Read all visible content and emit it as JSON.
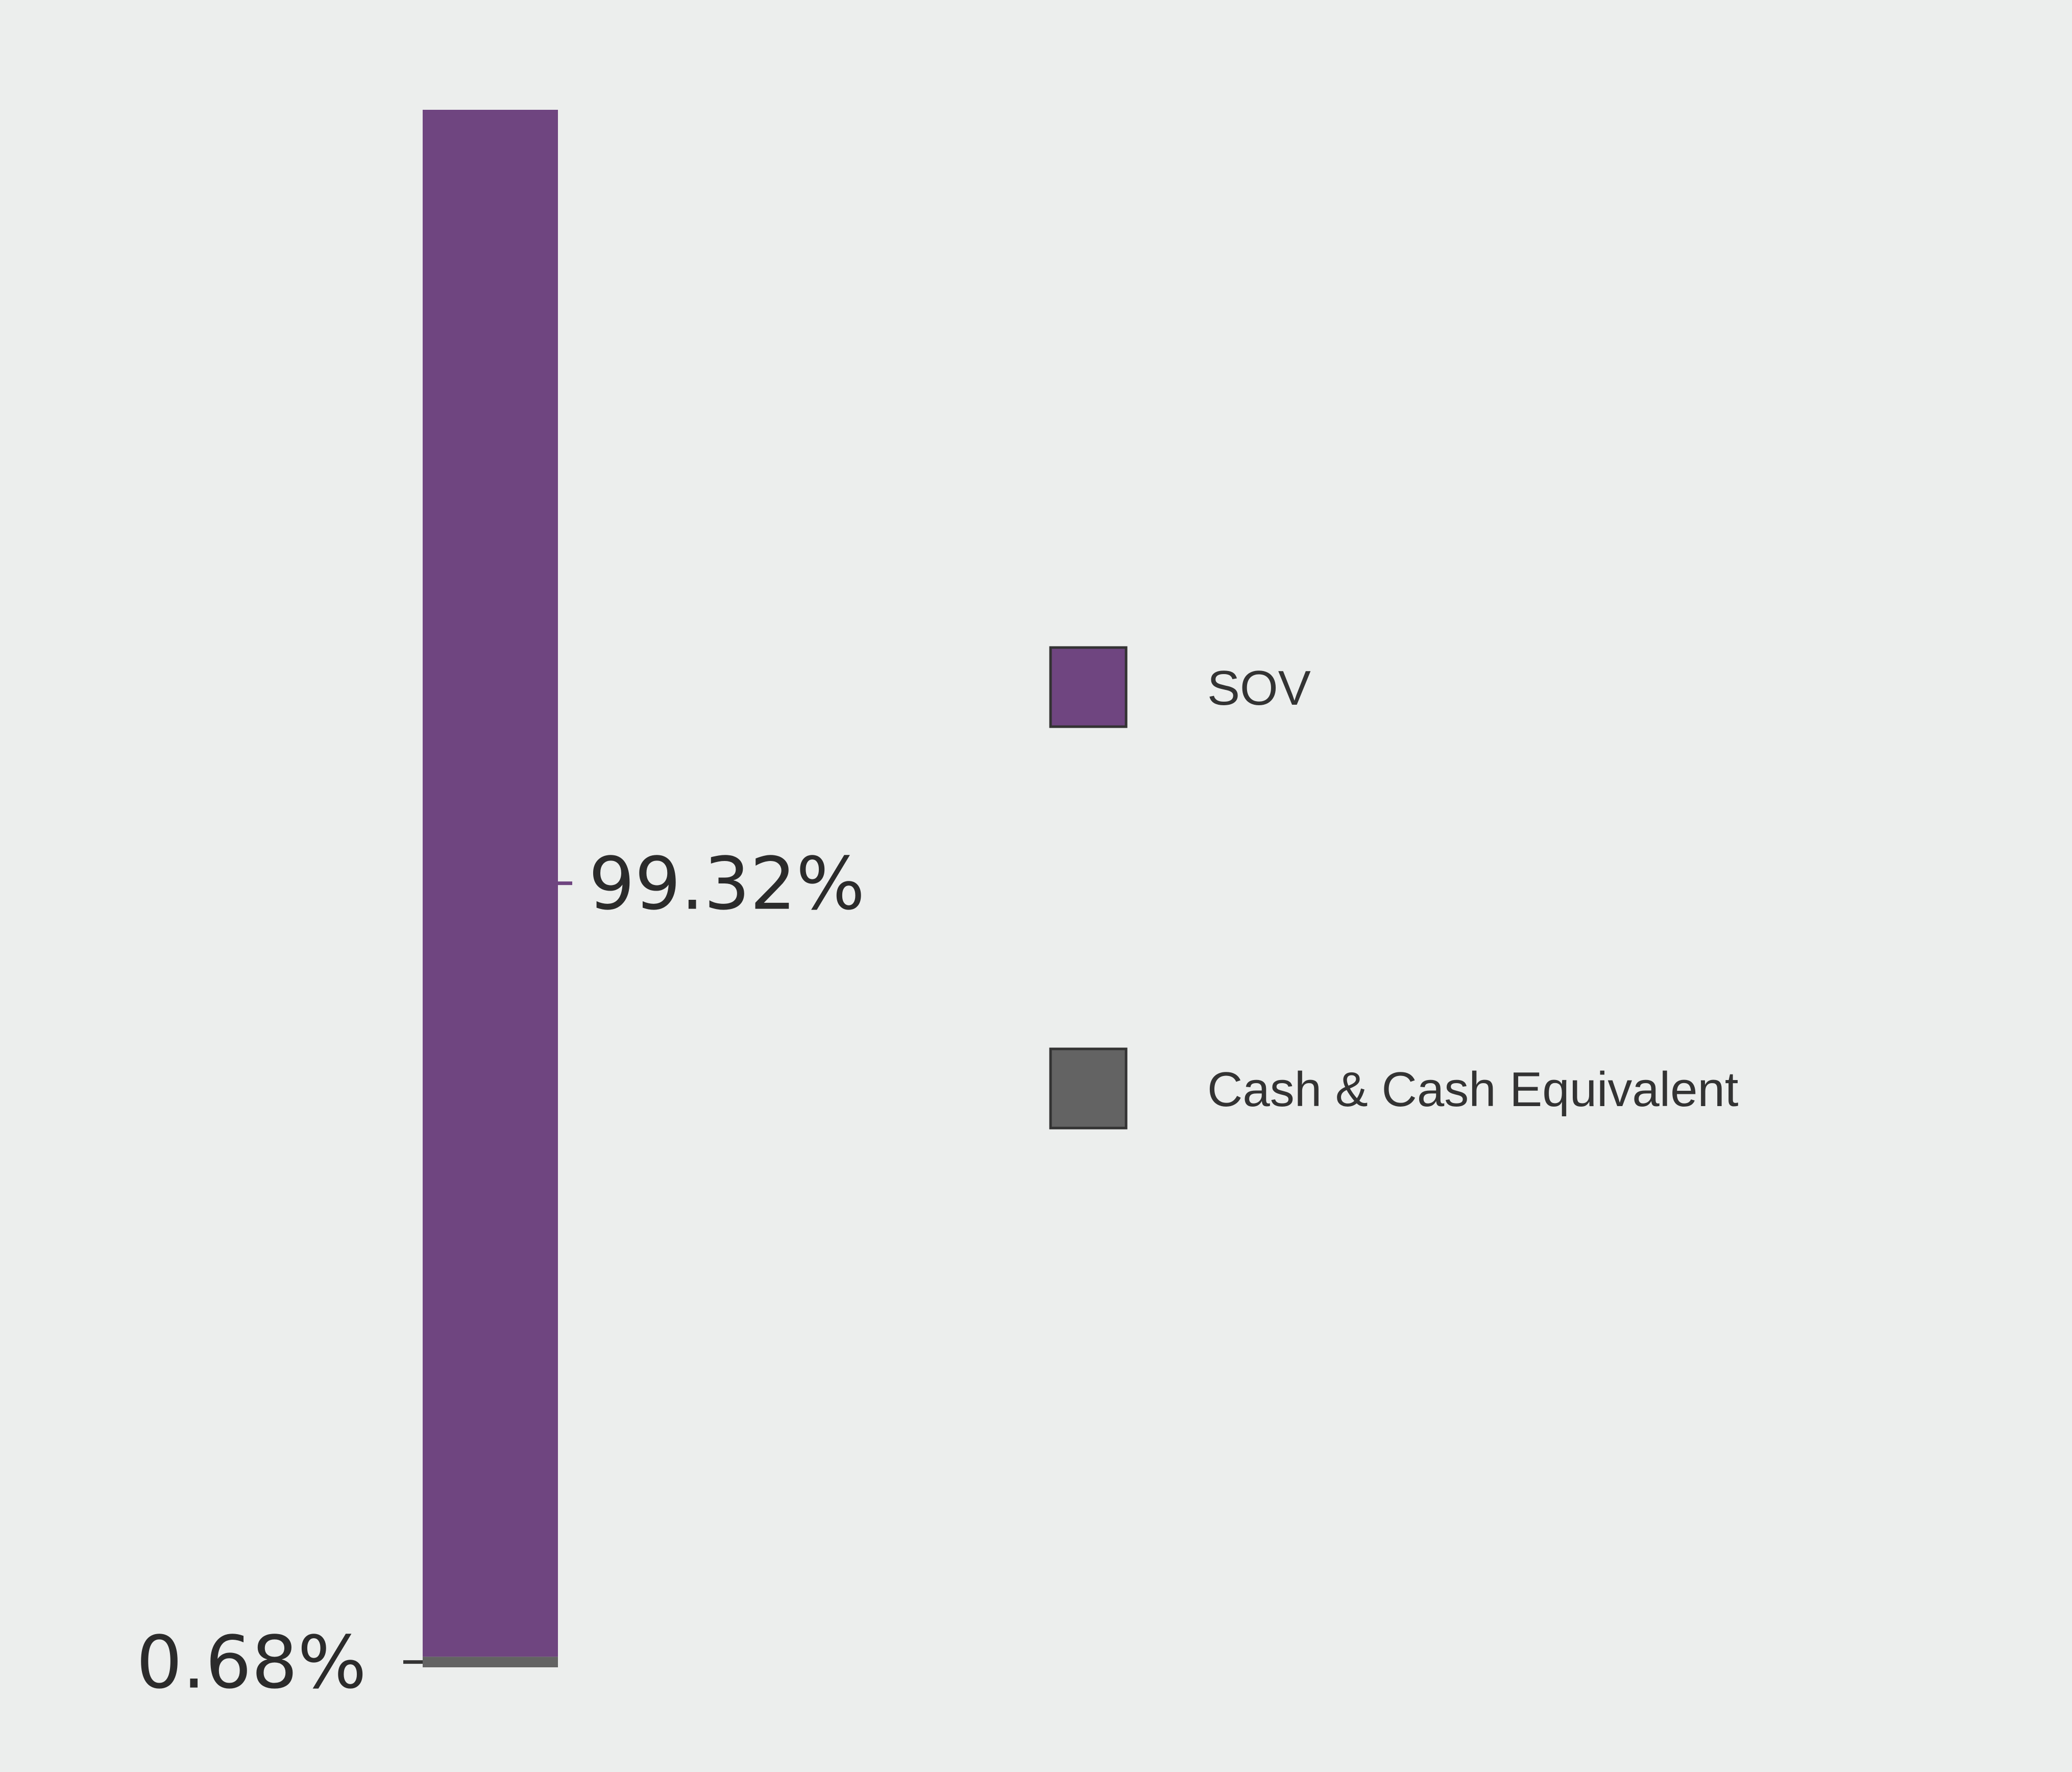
{
  "chart_data": {
    "type": "bar",
    "stacked": true,
    "orientation": "vertical",
    "categories": [
      ""
    ],
    "series": [
      {
        "name": "SOV",
        "values": [
          99.32
        ],
        "color": "#6f4580",
        "label": "99.32%",
        "label_side": "right"
      },
      {
        "name": "Cash & Cash Equivalent",
        "values": [
          0.68
        ],
        "color": "#636363",
        "label": "0.68%",
        "label_side": "left"
      }
    ],
    "ylim": [
      0,
      100
    ],
    "grid": false,
    "legend_position": "right",
    "background": "#eceeed",
    "title": "",
    "xlabel": "",
    "ylabel": ""
  }
}
